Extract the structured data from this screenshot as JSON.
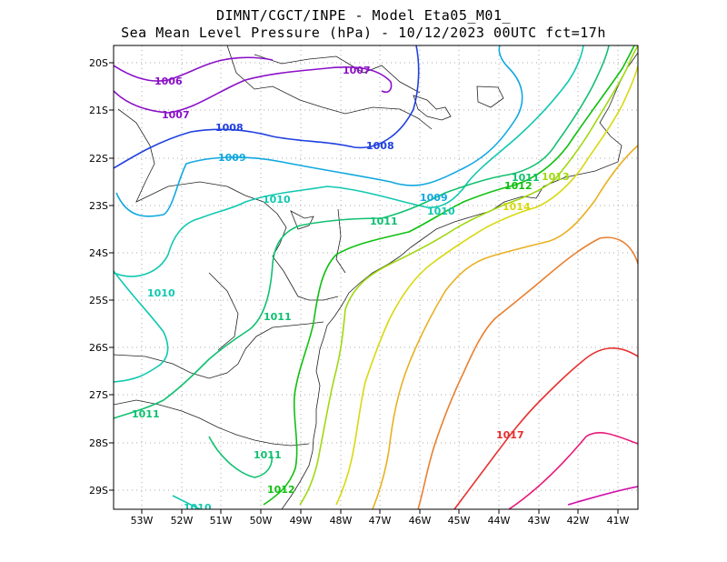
{
  "header": {
    "line1": "DIMNT/CGCT/INPE -  Model Eta05_M01_",
    "line2": "Sea Mean Level Pressure (hPa) - 10/12/2023 00UTC fct=17h"
  },
  "map": {
    "lon_labels": [
      "53W",
      "52W",
      "51W",
      "50W",
      "49W",
      "48W",
      "47W",
      "46W",
      "45W",
      "44W",
      "43W",
      "42W",
      "41W"
    ],
    "lat_labels": [
      "20S",
      "21S",
      "22S",
      "23S",
      "24S",
      "25S",
      "26S",
      "27S",
      "28S",
      "29S"
    ],
    "contour_labels": [
      {
        "text": "1006",
        "color": "#8a10c8"
      },
      {
        "text": "1007",
        "color": "#8a10c8"
      },
      {
        "text": "1007",
        "color": "#8a10c8"
      },
      {
        "text": "1008",
        "color": "#2040e0"
      },
      {
        "text": "1008",
        "color": "#2040e0"
      },
      {
        "text": "1009",
        "color": "#10a8e0"
      },
      {
        "text": "1009",
        "color": "#10a8e0"
      },
      {
        "text": "1010",
        "color": "#10c8b0"
      },
      {
        "text": "1010",
        "color": "#10c8b0"
      },
      {
        "text": "1010",
        "color": "#10c8b0"
      },
      {
        "text": "1010",
        "color": "#10c8b0"
      },
      {
        "text": "1011",
        "color": "#10c070"
      },
      {
        "text": "1011",
        "color": "#10c070"
      },
      {
        "text": "1011",
        "color": "#10c070"
      },
      {
        "text": "1011",
        "color": "#10c070"
      },
      {
        "text": "1011",
        "color": "#10c070"
      },
      {
        "text": "1012",
        "color": "#10c010"
      },
      {
        "text": "1012",
        "color": "#10c010"
      },
      {
        "text": "1013",
        "color": "#a0d810"
      },
      {
        "text": "1014",
        "color": "#d8d810"
      },
      {
        "text": "1017",
        "color": "#e83030"
      }
    ]
  }
}
